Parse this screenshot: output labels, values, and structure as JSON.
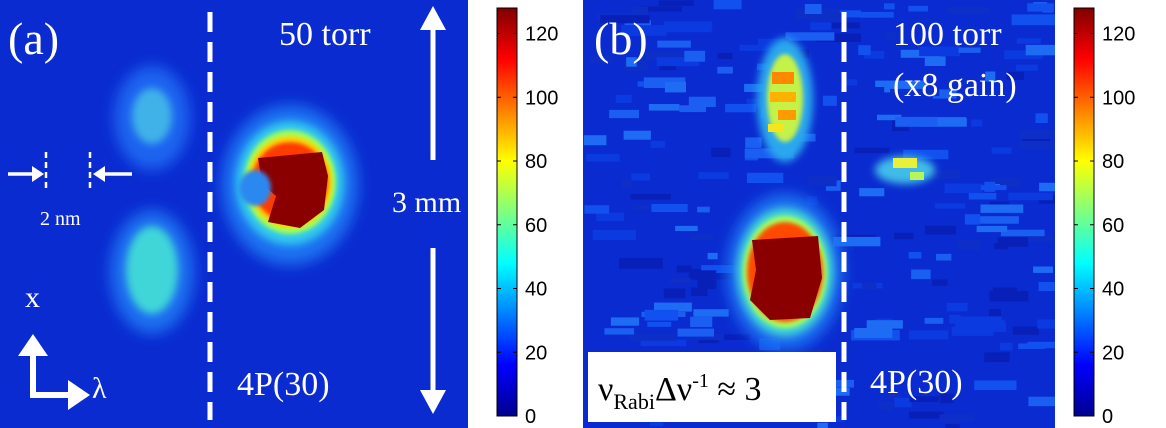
{
  "chart_data": [
    {
      "type": "heatmap",
      "panel_label": "(a)",
      "pressure": "50 torr",
      "transition_label": "4P(30)",
      "scale_label": "3 mm",
      "spacing_label": "2 nm",
      "axis_x_label": "x",
      "axis_lambda_label": "λ",
      "colorbar": {
        "range": [
          0,
          128
        ],
        "ticks": [
          "0",
          "20",
          "40",
          "60",
          "80",
          "100",
          "120"
        ],
        "colormap": "jet"
      },
      "features": [
        {
          "name": "left-upper-blob",
          "peak": 40
        },
        {
          "name": "left-lower-blob",
          "peak": 45
        },
        {
          "name": "right-main-blob",
          "peak": 128
        }
      ]
    },
    {
      "type": "heatmap",
      "panel_label": "(b)",
      "pressure": "100 torr",
      "gain": "(x8 gain)",
      "transition_label": "4P(30)",
      "rabi_base": "ν",
      "rabi_sub": "Rabi",
      "rabi_delta": "Δν",
      "rabi_exp": "-1",
      "rabi_rel": " ≈ 3",
      "colorbar": {
        "range": [
          0,
          128
        ],
        "ticks": [
          "0",
          "20",
          "40",
          "60",
          "80",
          "100",
          "120"
        ],
        "colormap": "jet"
      },
      "features": [
        {
          "name": "upper-streak",
          "peak": 100
        },
        {
          "name": "lower-main-blob",
          "peak": 128
        },
        {
          "name": "right-faint-streak",
          "peak": 70
        }
      ]
    }
  ]
}
